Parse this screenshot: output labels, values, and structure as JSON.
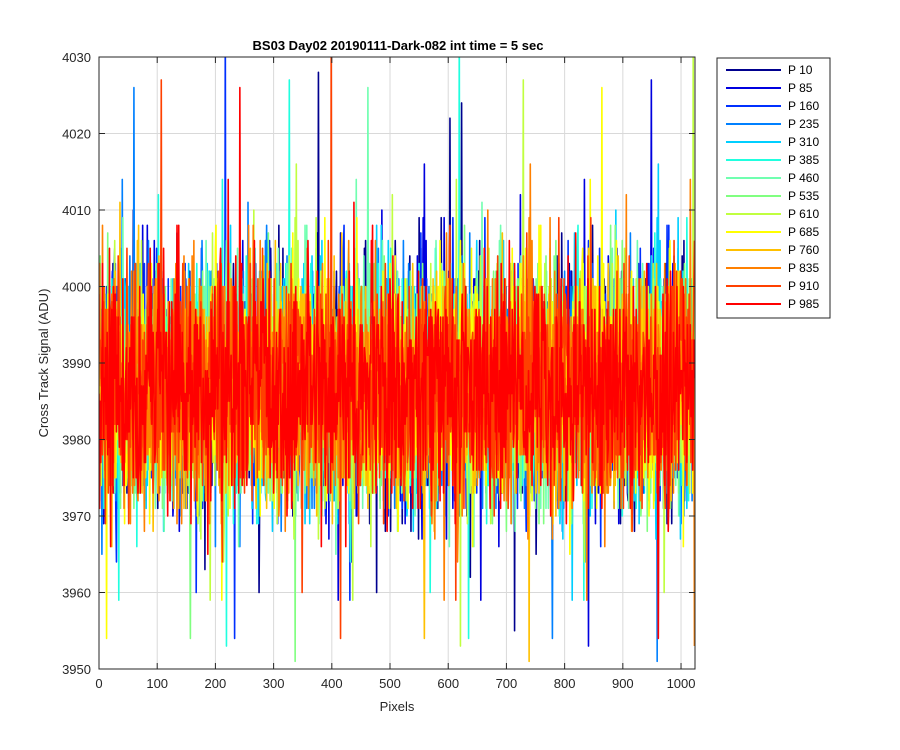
{
  "chart_data": {
    "type": "line",
    "title": "BS03 Day02 20190111-Dark-082 int time = 5 sec",
    "xlabel": "Pixels",
    "ylabel": "Cross Track Signal (ADU)",
    "xlim": [
      0,
      1024
    ],
    "ylim": [
      3950,
      4030
    ],
    "xticks": [
      0,
      100,
      200,
      300,
      400,
      500,
      600,
      700,
      800,
      900,
      1000
    ],
    "yticks": [
      3950,
      3960,
      3970,
      3980,
      3990,
      4000,
      4010,
      4020,
      4030
    ],
    "grid": true,
    "legend_position": "outside-top-right",
    "noise_model": {
      "n_points": 1024,
      "mean": 3987,
      "std": 7.5
    },
    "series": [
      {
        "name": "P 10",
        "color": "#00008f"
      },
      {
        "name": "P 85",
        "color": "#0000df"
      },
      {
        "name": "P 160",
        "color": "#0030ff"
      },
      {
        "name": "P 235",
        "color": "#0080ff"
      },
      {
        "name": "P 310",
        "color": "#00cfff"
      },
      {
        "name": "P 385",
        "color": "#20ffdf"
      },
      {
        "name": "P 460",
        "color": "#70ffb0"
      },
      {
        "name": "P 535",
        "color": "#80ff80"
      },
      {
        "name": "P 610",
        "color": "#c0ff40"
      },
      {
        "name": "P 685",
        "color": "#ffff00"
      },
      {
        "name": "P 760",
        "color": "#ffc000"
      },
      {
        "name": "P 835",
        "color": "#ff8000"
      },
      {
        "name": "P 910",
        "color": "#ff4000"
      },
      {
        "name": "P 985",
        "color": "#ff0000"
      }
    ]
  }
}
